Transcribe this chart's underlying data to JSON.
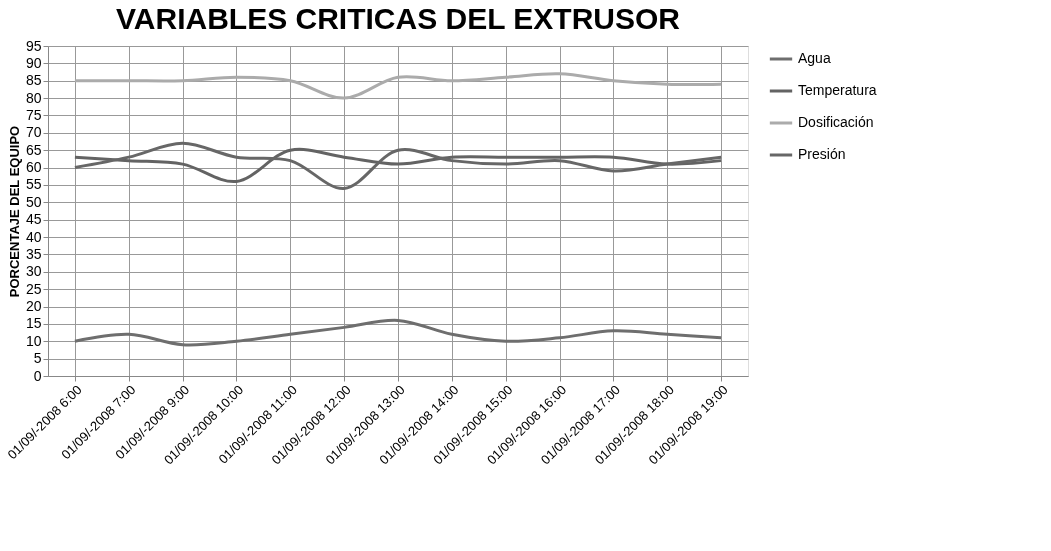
{
  "chart_data": {
    "type": "line",
    "title": "VARIABLES CRITICAS DEL EXTRUSOR",
    "ylabel": "PORCENTAJE DEL EQUIPO",
    "categories": [
      "01/09/-2008 6:00",
      "01/09/-2008 7:00",
      "01/09/-2008 9:00",
      "01/09/-2008 10:00",
      "01/09/-2008 11:00",
      "01/09/-2008 12:00",
      "01/09/-2008 13:00",
      "01/09/-2008 14:00",
      "01/09/-2008 15:00",
      "01/09/-2008 16:00",
      "01/09/-2008 17:00",
      "01/09/-2008 18:00",
      "01/09/-2008 19:00"
    ],
    "series": [
      {
        "name": "Agua",
        "color": "#6e6e6e",
        "values": [
          10,
          12,
          9,
          10,
          12,
          14,
          16,
          12,
          10,
          11,
          13,
          12,
          11
        ]
      },
      {
        "name": "Temperatura",
        "color": "#636363",
        "values": [
          63,
          62,
          61,
          56,
          65,
          63,
          61,
          63,
          63,
          63,
          63,
          61,
          62
        ]
      },
      {
        "name": "Dosificación",
        "color": "#ababab",
        "values": [
          85,
          85,
          85,
          86,
          85,
          80,
          86,
          85,
          86,
          87,
          85,
          84,
          84
        ]
      },
      {
        "name": "Presión",
        "color": "#676767",
        "values": [
          60,
          63,
          67,
          63,
          62,
          54,
          65,
          62,
          61,
          62,
          59,
          61,
          63
        ]
      }
    ],
    "ylim": [
      0,
      95
    ],
    "yticks": [
      0,
      5,
      10,
      15,
      20,
      25,
      30,
      35,
      40,
      45,
      50,
      55,
      60,
      65,
      70,
      75,
      80,
      85,
      90,
      95
    ],
    "grid": true,
    "legend": "right",
    "marker": "none",
    "line_style": "solid"
  }
}
